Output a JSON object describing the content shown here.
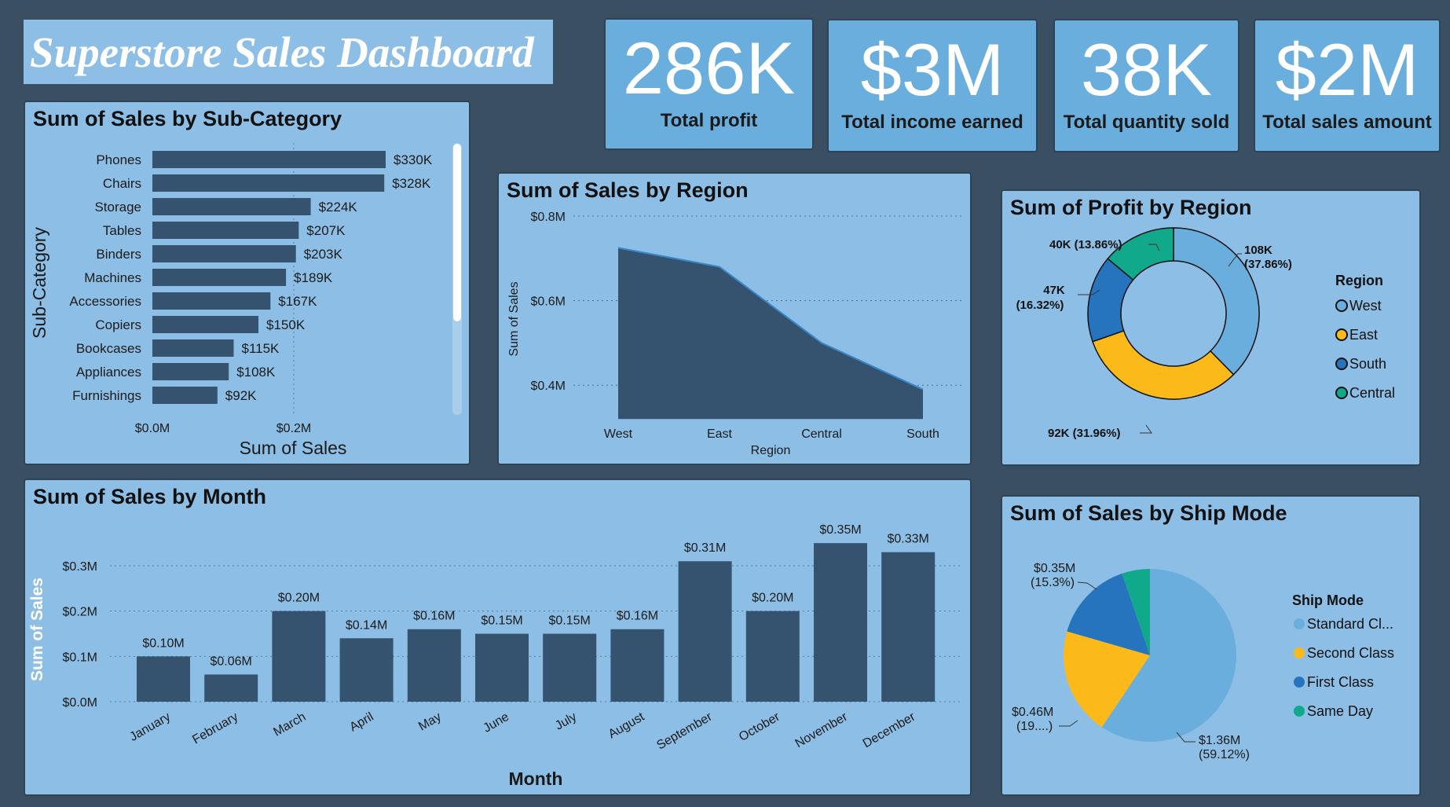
{
  "dashboard": {
    "title": "Superstore Sales Dashboard"
  },
  "kpis": [
    {
      "value": "286K",
      "label": "Total profit"
    },
    {
      "value": "$3M",
      "label": "Total income earned"
    },
    {
      "value": "38K",
      "label": "Total quantity sold"
    },
    {
      "value": "$2M",
      "label": "Total sales amount"
    }
  ],
  "colors": {
    "bar": "#35536f",
    "panel": "#8dbfe6",
    "kpi": "#6aaede",
    "west": "#6aaede",
    "east": "#fbb91a",
    "south": "#2774be",
    "central": "#11a98b"
  },
  "chart_data": [
    {
      "type": "bar",
      "orientation": "horizontal",
      "title": "Sum of Sales by Sub-Category",
      "xlabel": "Sum of Sales",
      "ylabel": "Sub-Category",
      "categories": [
        "Phones",
        "Chairs",
        "Storage",
        "Tables",
        "Binders",
        "Machines",
        "Accessories",
        "Copiers",
        "Bookcases",
        "Appliances",
        "Furnishings"
      ],
      "values": [
        330,
        328,
        224,
        207,
        203,
        189,
        167,
        150,
        115,
        108,
        92
      ],
      "value_labels": [
        "$330K",
        "$328K",
        "$224K",
        "$207K",
        "$203K",
        "$189K",
        "$167K",
        "$150K",
        "$115K",
        "$108K",
        "$92K"
      ],
      "x_ticks": [
        "$0.0M",
        "$0.2M"
      ],
      "xlim": [
        0,
        0.4
      ]
    },
    {
      "type": "area",
      "title": "Sum of Sales by Region",
      "xlabel": "Region",
      "ylabel": "Sum of Sales",
      "categories": [
        "West",
        "East",
        "Central",
        "South"
      ],
      "values": [
        0.725,
        0.68,
        0.5,
        0.39
      ],
      "y_ticks": [
        "$0.8M",
        "$0.6M",
        "$0.4M"
      ],
      "ylim": [
        0.3,
        0.8
      ]
    },
    {
      "type": "pie",
      "donut": true,
      "title": "Sum of Profit by Region",
      "legend_title": "Region",
      "legend_position": "right",
      "labels": [
        "West",
        "East",
        "South",
        "Central"
      ],
      "values": [
        108,
        92,
        47,
        40
      ],
      "percents": [
        37.86,
        31.96,
        16.32,
        13.86
      ],
      "slice_labels": [
        {
          "value": "108K",
          "pct": "(37.86%)"
        },
        {
          "value": "92K (31.96%)",
          "pct": ""
        },
        {
          "value": "47K",
          "pct": "(16.32%)"
        },
        {
          "value": "40K (13.86%)",
          "pct": ""
        }
      ]
    },
    {
      "type": "bar",
      "title": "Sum of Sales by Month",
      "xlabel": "Month",
      "ylabel": "Sum of Sales",
      "categories": [
        "January",
        "February",
        "March",
        "April",
        "May",
        "June",
        "July",
        "August",
        "September",
        "October",
        "November",
        "December"
      ],
      "values": [
        0.1,
        0.06,
        0.2,
        0.14,
        0.16,
        0.15,
        0.15,
        0.16,
        0.31,
        0.2,
        0.35,
        0.33
      ],
      "value_labels": [
        "$0.10M",
        "$0.06M",
        "$0.20M",
        "$0.14M",
        "$0.16M",
        "$0.15M",
        "$0.15M",
        "$0.16M",
        "$0.31M",
        "$0.20M",
        "$0.35M",
        "$0.33M"
      ],
      "y_ticks": [
        "$0.3M",
        "$0.2M",
        "$0.1M",
        "$0.0M"
      ],
      "ylim": [
        0,
        0.35
      ]
    },
    {
      "type": "pie",
      "title": "Sum of Sales by Ship Mode",
      "legend_title": "Ship Mode",
      "legend_position": "right",
      "labels": [
        "Standard Cl...",
        "Second Class",
        "First Class",
        "Same Day"
      ],
      "values": [
        1.36,
        0.46,
        0.35,
        0.12
      ],
      "percents": [
        59.12,
        19.9,
        15.3,
        5.68
      ],
      "slice_labels": [
        {
          "value": "$1.36M",
          "pct": "(59.12%)"
        },
        {
          "value": "$0.46M",
          "pct": "(19....)"
        },
        {
          "value": "$0.35M",
          "pct": "(15.3%)"
        }
      ]
    }
  ]
}
